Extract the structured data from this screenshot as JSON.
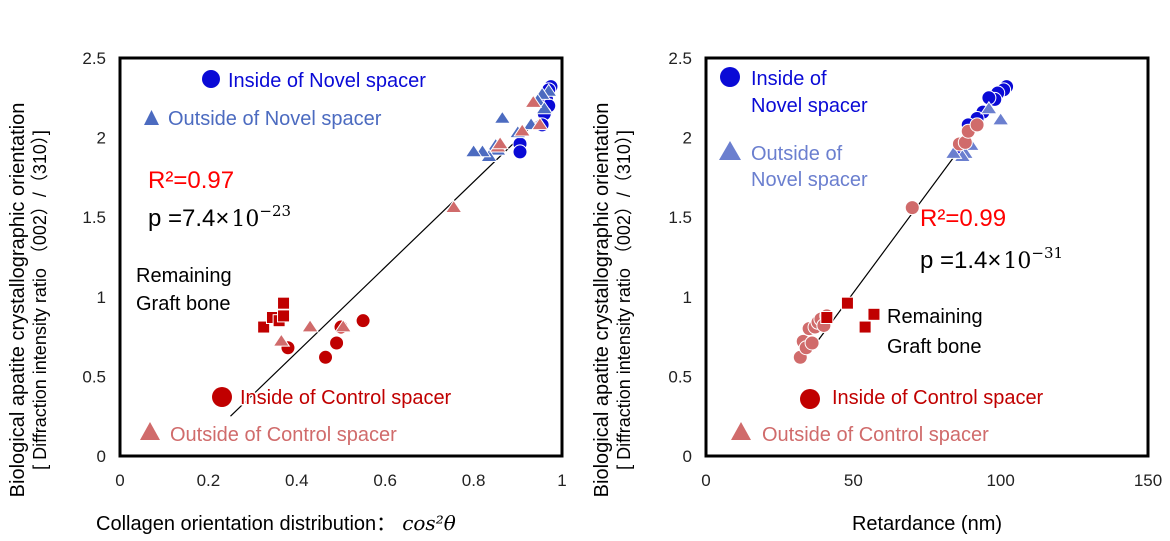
{
  "shared": {
    "ylabel_line1": "Biological apatite crystallographic orientation",
    "ylabel_line2": "[ Diffraction intensity ratio （002）/（310）]"
  },
  "chart_data": [
    {
      "type": "scatter",
      "xlabel": "Collagen orientation distribution：",
      "xlabel_math": "cos²θ",
      "xlim": [
        0,
        1
      ],
      "ylim": [
        0,
        2.5
      ],
      "x_ticks": [
        "0",
        "0.2",
        "0.4",
        "0.6",
        "0.8",
        "1"
      ],
      "y_ticks": [
        "0",
        "0.5",
        "1",
        "1.5",
        "2",
        "2.5"
      ],
      "grid": false,
      "legend": [
        {
          "label": "Inside of Novel spacer",
          "marker": "circle",
          "color": "#0a0ad6"
        },
        {
          "label": "Outside of Novel spacer",
          "marker": "triangle",
          "color": "#4c6bc0"
        },
        {
          "label": "Inside of Control spacer",
          "marker": "circle",
          "color": "#c00000"
        },
        {
          "label": "Outside of Control spacer",
          "marker": "triangle",
          "color": "#d06b6b"
        }
      ],
      "annotations": {
        "r2": "R²=0.97",
        "p_prefix": "p =7.4×",
        "p_base": "10",
        "p_exp": "−23",
        "remaining_1": "Remaining",
        "remaining_2": "Graft bone"
      },
      "colors": {
        "r2": "#ff0000",
        "remaining": "#c00000"
      },
      "series": [
        {
          "marker": "circle",
          "color": "#0a0ad6",
          "x": [
            0.975,
            0.97,
            0.965,
            0.97,
            0.96,
            0.955,
            0.905,
            0.905
          ],
          "y": [
            2.32,
            2.3,
            2.24,
            2.2,
            2.15,
            2.08,
            1.96,
            1.91
          ]
        },
        {
          "marker": "triangle",
          "color": "#4c6bc0",
          "x": [
            0.97,
            0.955,
            0.945,
            0.93,
            0.9,
            0.865,
            0.855,
            0.85,
            0.835,
            0.82,
            0.8,
            0.96
          ],
          "y": [
            2.29,
            2.27,
            2.23,
            2.08,
            2.03,
            2.12,
            1.92,
            1.95,
            1.88,
            1.91,
            1.91,
            2.18
          ]
        },
        {
          "marker": "circle",
          "color": "#c00000",
          "x": [
            0.38,
            0.465,
            0.49,
            0.5,
            0.55
          ],
          "y": [
            0.68,
            0.62,
            0.71,
            0.81,
            0.85
          ]
        },
        {
          "marker": "triangle",
          "color": "#d06b6b",
          "x": [
            0.365,
            0.43,
            0.505,
            0.755,
            0.855,
            0.86,
            0.91,
            0.95,
            0.935
          ],
          "y": [
            0.72,
            0.81,
            0.81,
            1.56,
            1.94,
            1.96,
            2.04,
            2.08,
            2.22
          ]
        },
        {
          "marker": "square",
          "color": "#c00000",
          "x": [
            0.325,
            0.345,
            0.36,
            0.37,
            0.37
          ],
          "y": [
            0.81,
            0.87,
            0.85,
            0.88,
            0.96
          ]
        }
      ],
      "fit_line": {
        "x": [
          0.25,
          0.96
        ],
        "y": [
          0.25,
          2.15
        ]
      }
    },
    {
      "type": "scatter",
      "xlabel": "Retardance (nm)",
      "xlim": [
        0,
        150
      ],
      "ylim": [
        0,
        2.5
      ],
      "x_ticks": [
        "0",
        "50",
        "100",
        "150"
      ],
      "y_ticks": [
        "0",
        "0.5",
        "1",
        "1.5",
        "2",
        "2.5"
      ],
      "grid": false,
      "legend": [
        {
          "label_1": "Inside of",
          "label_2": "Novel spacer",
          "marker": "circle",
          "color": "#0a0ad6"
        },
        {
          "label_1": "Outside of",
          "label_2": "Novel spacer",
          "marker": "triangle",
          "color": "#6b7fcf"
        },
        {
          "label": "Inside of Control spacer",
          "marker": "circle",
          "color": "#c00000"
        },
        {
          "label": "Outside of Control spacer",
          "marker": "triangle",
          "color": "#d06b6b"
        }
      ],
      "annotations": {
        "r2": "R²=0.99",
        "p_prefix": "p =1.4×",
        "p_base": "10",
        "p_exp": "−31",
        "remaining_1": "Remaining",
        "remaining_2": "Graft bone"
      },
      "colors": {
        "r2": "#ff0000",
        "remaining": "#c00000"
      },
      "series": [
        {
          "marker": "circle",
          "color": "#0a0ad6",
          "x": [
            102,
            101,
            99,
            98,
            96,
            94,
            92,
            89,
            87
          ],
          "y": [
            2.32,
            2.3,
            2.28,
            2.24,
            2.25,
            2.16,
            2.12,
            2.08,
            1.92
          ]
        },
        {
          "marker": "triangle",
          "color": "#6b7fcf",
          "x": [
            100,
            96,
            90,
            88,
            87,
            84
          ],
          "y": [
            2.11,
            2.18,
            1.95,
            1.9,
            1.88,
            1.9
          ]
        },
        {
          "marker": "circle",
          "color": "#d06b6b",
          "x": [
            32,
            33,
            34,
            35,
            36,
            37,
            38,
            39,
            40,
            41,
            70,
            86,
            88,
            89,
            92
          ],
          "y": [
            0.62,
            0.72,
            0.68,
            0.8,
            0.71,
            0.81,
            0.84,
            0.86,
            0.82,
            0.88,
            1.56,
            1.96,
            1.97,
            2.04,
            2.08
          ]
        },
        {
          "marker": "square",
          "color": "#c00000",
          "x": [
            41,
            48,
            54,
            57
          ],
          "y": [
            0.87,
            0.96,
            0.81,
            0.89
          ]
        }
      ],
      "fit_line": {
        "x": [
          35,
          91
        ],
        "y": [
          0.65,
          2.05
        ]
      }
    }
  ]
}
